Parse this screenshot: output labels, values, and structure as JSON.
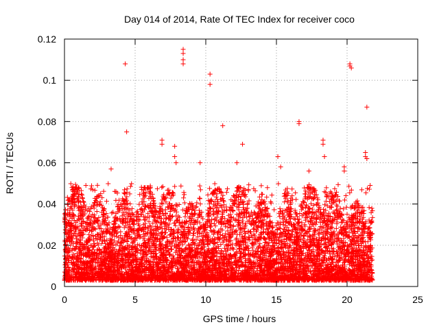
{
  "chart_data": {
    "type": "scatter",
    "title": "Day 014 of 2014, Rate Of TEC Index for receiver coco",
    "xlabel": "GPS time / hours",
    "ylabel": "ROTI / TECUs",
    "xlim": [
      0,
      25
    ],
    "ylim": [
      0,
      0.12
    ],
    "xticks": [
      0,
      5,
      10,
      15,
      20,
      25
    ],
    "xtick_labels": [
      "0",
      "5",
      "10",
      "15",
      "20",
      "25"
    ],
    "yticks": [
      0,
      0.02,
      0.04,
      0.06,
      0.08,
      0.1,
      0.12
    ],
    "ytick_labels": [
      "0",
      "0.02",
      "0.04",
      "0.06",
      "0.08",
      "0.1",
      "0.12"
    ],
    "grid": true,
    "marker": "+",
    "color": "#ff0000",
    "dense_band": {
      "x_range": [
        0,
        21.8
      ],
      "y_range": [
        0.003,
        0.048
      ],
      "typical_y": 0.015
    },
    "outliers": [
      {
        "x": 4.3,
        "y": 0.108
      },
      {
        "x": 4.4,
        "y": 0.075
      },
      {
        "x": 8.4,
        "y": 0.115
      },
      {
        "x": 8.4,
        "y": 0.113
      },
      {
        "x": 8.4,
        "y": 0.11
      },
      {
        "x": 8.4,
        "y": 0.108
      },
      {
        "x": 10.3,
        "y": 0.103
      },
      {
        "x": 10.3,
        "y": 0.098
      },
      {
        "x": 11.2,
        "y": 0.078
      },
      {
        "x": 12.6,
        "y": 0.069
      },
      {
        "x": 6.9,
        "y": 0.071
      },
      {
        "x": 6.9,
        "y": 0.069
      },
      {
        "x": 7.8,
        "y": 0.068
      },
      {
        "x": 7.8,
        "y": 0.063
      },
      {
        "x": 7.9,
        "y": 0.06
      },
      {
        "x": 3.3,
        "y": 0.057
      },
      {
        "x": 9.6,
        "y": 0.06
      },
      {
        "x": 12.2,
        "y": 0.06
      },
      {
        "x": 15.1,
        "y": 0.063
      },
      {
        "x": 15.3,
        "y": 0.058
      },
      {
        "x": 16.6,
        "y": 0.08
      },
      {
        "x": 16.6,
        "y": 0.079
      },
      {
        "x": 17.3,
        "y": 0.056
      },
      {
        "x": 18.3,
        "y": 0.071
      },
      {
        "x": 18.3,
        "y": 0.069
      },
      {
        "x": 18.4,
        "y": 0.063
      },
      {
        "x": 19.8,
        "y": 0.058
      },
      {
        "x": 19.8,
        "y": 0.056
      },
      {
        "x": 20.2,
        "y": 0.108
      },
      {
        "x": 20.2,
        "y": 0.107
      },
      {
        "x": 20.3,
        "y": 0.106
      },
      {
        "x": 21.4,
        "y": 0.087
      },
      {
        "x": 21.3,
        "y": 0.065
      },
      {
        "x": 21.3,
        "y": 0.063
      },
      {
        "x": 21.4,
        "y": 0.062
      }
    ]
  }
}
